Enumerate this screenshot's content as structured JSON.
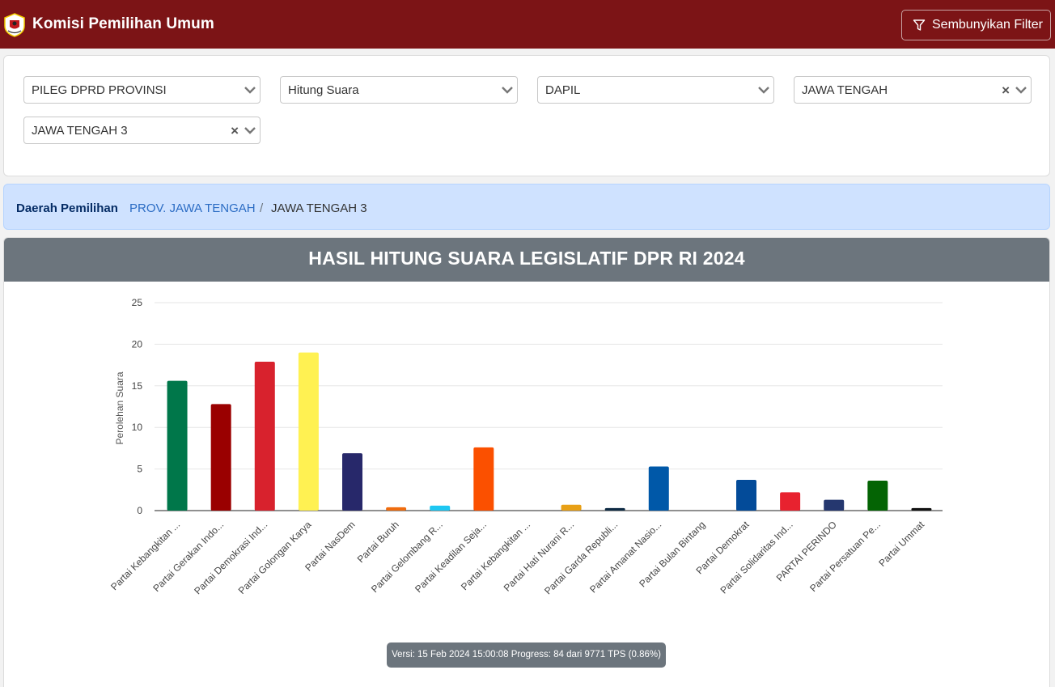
{
  "navbar": {
    "brand": "Komisi Pemilihan Umum",
    "filter_toggle_label": "Sembunyikan Filter",
    "bg_color": "#7c1416"
  },
  "filters": [
    {
      "value": "PILEG DPRD PROVINSI",
      "clearable": false
    },
    {
      "value": "Hitung Suara",
      "clearable": false
    },
    {
      "value": "DAPIL",
      "clearable": false
    },
    {
      "value": "JAWA TENGAH",
      "clearable": true
    },
    {
      "value": "JAWA TENGAH 3",
      "clearable": true
    }
  ],
  "breadcrumb": {
    "label": "Daerah Pemilihan",
    "link": "PROV. JAWA TENGAH",
    "separator": "/",
    "current": "JAWA TENGAH 3"
  },
  "chart_card": {
    "title": "HASIL HITUNG SUARA LEGISLATIF DPR RI 2024"
  },
  "chart_data": {
    "type": "bar",
    "title": "HASIL HITUNG SUARA LEGISLATIF DPR RI 2024",
    "xlabel": "",
    "ylabel": "Perolehan Suara",
    "ylim": [
      0,
      25
    ],
    "yticks": [
      0,
      5,
      10,
      15,
      20,
      25
    ],
    "grid": true,
    "categories": [
      "Partai Kebangkitan ...",
      "Partai Gerakan Indo...",
      "Partai Demokrasi Ind...",
      "Partai Golongan Karya",
      "Partai NasDem",
      "Partai Buruh",
      "Partai Gelombang R...",
      "Partai Keadilan Seja...",
      "Partai Kebangkitan ...",
      "Partai Hati Nurani R...",
      "Partai Garda Republi...",
      "Partai Amanat Nasio...",
      "Partai Bulan Bintang",
      "Partai Demokrat",
      "Partai Solidaritas Ind...",
      "PARTAI PERINDO",
      "Partai Persatuan Pe...",
      "Partai Ummat"
    ],
    "values": [
      15.6,
      12.8,
      17.9,
      19.0,
      6.9,
      0.4,
      0.6,
      7.6,
      0,
      0.7,
      0.3,
      5.3,
      0,
      3.7,
      2.2,
      1.3,
      3.6,
      0.3
    ],
    "colors": [
      "#00774a",
      "#9a0000",
      "#d8222d",
      "#fff152",
      "#27286a",
      "#ef6c0f",
      "#1ec7f2",
      "#fb5000",
      "#0a7a3d",
      "#e8a016",
      "#0e2a44",
      "#0058a8",
      "#0b6d36",
      "#034b99",
      "#e8222f",
      "#25376f",
      "#046404",
      "#111111"
    ]
  },
  "footer": {
    "version_text": "Versi: 15 Feb 2024 15:00:08 Progress: 84 dari 9771 TPS (0.86%)"
  }
}
